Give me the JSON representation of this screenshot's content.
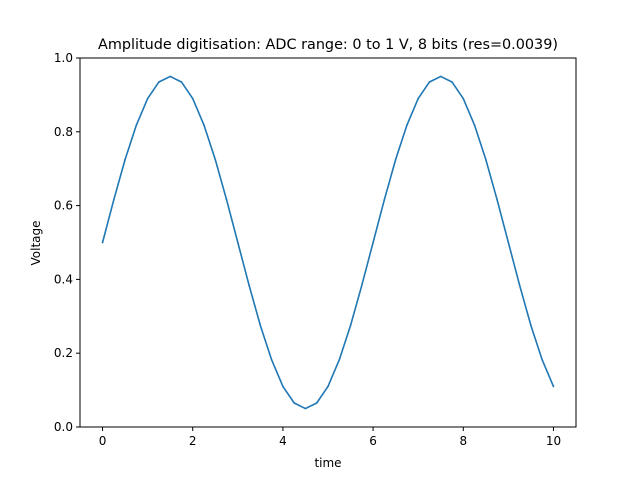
{
  "chart_data": {
    "type": "line",
    "title": "Amplitude digitisation: ADC range: 0 to 1 V, 8 bits (res=0.0039)",
    "xlabel": "time",
    "ylabel": "Voltage",
    "xlim": [
      -0.5,
      10.5
    ],
    "ylim": [
      0,
      1
    ],
    "xticks": [
      0,
      2,
      4,
      6,
      8,
      10
    ],
    "yticks": [
      0.0,
      0.2,
      0.4,
      0.6,
      0.8,
      1.0
    ],
    "xtick_labels": [
      "0",
      "2",
      "4",
      "6",
      "8",
      "10"
    ],
    "ytick_labels": [
      "0.0",
      "0.2",
      "0.4",
      "0.6",
      "0.8",
      "1.0"
    ],
    "grid": false,
    "colors": {
      "line": "#1f77b4"
    },
    "series": [
      {
        "x": [
          0,
          0.25,
          0.5,
          0.75,
          1,
          1.25,
          1.5,
          1.75,
          2,
          2.25,
          2.5,
          2.75,
          3,
          3.25,
          3.5,
          3.75,
          4,
          4.25,
          4.5,
          4.75,
          5,
          5.25,
          5.5,
          5.75,
          6,
          6.25,
          6.5,
          6.75,
          7,
          7.25,
          7.5,
          7.75,
          8,
          8.25,
          8.5,
          8.75,
          9,
          9.25,
          9.5,
          9.75,
          10
        ],
        "y": [
          0.5,
          0.616,
          0.725,
          0.818,
          0.89,
          0.935,
          0.95,
          0.935,
          0.89,
          0.818,
          0.725,
          0.616,
          0.5,
          0.384,
          0.275,
          0.182,
          0.11,
          0.065,
          0.05,
          0.065,
          0.11,
          0.182,
          0.275,
          0.384,
          0.5,
          0.616,
          0.725,
          0.818,
          0.89,
          0.935,
          0.95,
          0.935,
          0.89,
          0.818,
          0.725,
          0.616,
          0.5,
          0.384,
          0.275,
          0.182,
          0.11
        ]
      }
    ]
  }
}
